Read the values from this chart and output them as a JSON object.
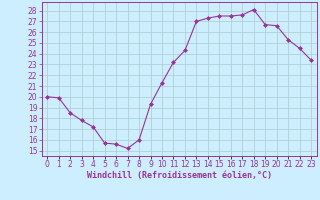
{
  "x": [
    0,
    1,
    2,
    3,
    4,
    5,
    6,
    7,
    8,
    9,
    10,
    11,
    12,
    13,
    14,
    15,
    16,
    17,
    18,
    19,
    20,
    21,
    22,
    23
  ],
  "y": [
    20.0,
    19.9,
    18.5,
    17.8,
    17.2,
    15.7,
    15.6,
    15.2,
    16.0,
    19.3,
    21.3,
    23.2,
    24.3,
    27.0,
    27.3,
    27.5,
    27.5,
    27.6,
    28.1,
    26.7,
    26.6,
    25.3,
    24.5,
    23.4
  ],
  "line_color": "#993399",
  "marker": "D",
  "marker_size": 2.0,
  "bg_color": "#cceeff",
  "grid_color": "#aacccc",
  "xlabel": "Windchill (Refroidissement éolien,°C)",
  "xlabel_color": "#993399",
  "tick_color": "#993399",
  "ylabel_ticks": [
    15,
    16,
    17,
    18,
    19,
    20,
    21,
    22,
    23,
    24,
    25,
    26,
    27,
    28
  ],
  "ylim": [
    14.5,
    28.8
  ],
  "xlim": [
    -0.5,
    23.5
  ],
  "xtick_labels": [
    "0",
    "1",
    "2",
    "3",
    "4",
    "5",
    "6",
    "7",
    "8",
    "9",
    "10",
    "11",
    "12",
    "13",
    "14",
    "15",
    "16",
    "17",
    "18",
    "19",
    "20",
    "21",
    "22",
    "23"
  ],
  "tick_fontsize": 5.5,
  "xlabel_fontsize": 6.0,
  "linewidth": 0.8
}
